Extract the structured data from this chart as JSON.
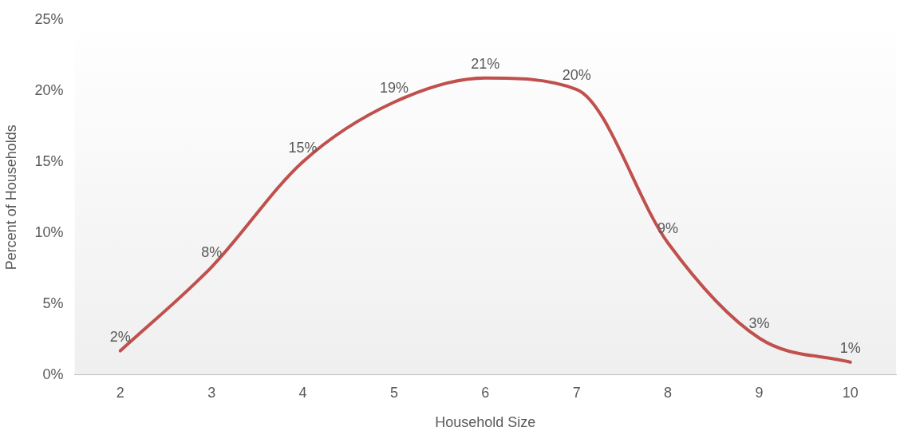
{
  "chart_data": {
    "type": "line",
    "xlabel": "Household Size",
    "ylabel": "Percent of Households",
    "categories": [
      "2",
      "3",
      "4",
      "5",
      "6",
      "7",
      "8",
      "9",
      "10"
    ],
    "values": [
      1.7,
      7.6,
      15,
      19.2,
      20.9,
      20.1,
      9.3,
      2.6,
      0.9
    ],
    "value_labels": [
      "2%",
      "8%",
      "15%",
      "19%",
      "21%",
      "20%",
      "9%",
      "3%",
      "1%"
    ],
    "color": "#c0504d",
    "marker": "none",
    "line_style": "solid",
    "grid": false,
    "legend": false,
    "ylim": [
      0,
      25
    ],
    "yticks": [
      {
        "value": 0,
        "label": "0%"
      },
      {
        "value": 5,
        "label": "5%"
      },
      {
        "value": 10,
        "label": "10%"
      },
      {
        "value": 15,
        "label": "15%"
      },
      {
        "value": 20,
        "label": "20%"
      },
      {
        "value": 25,
        "label": "25%"
      }
    ]
  }
}
